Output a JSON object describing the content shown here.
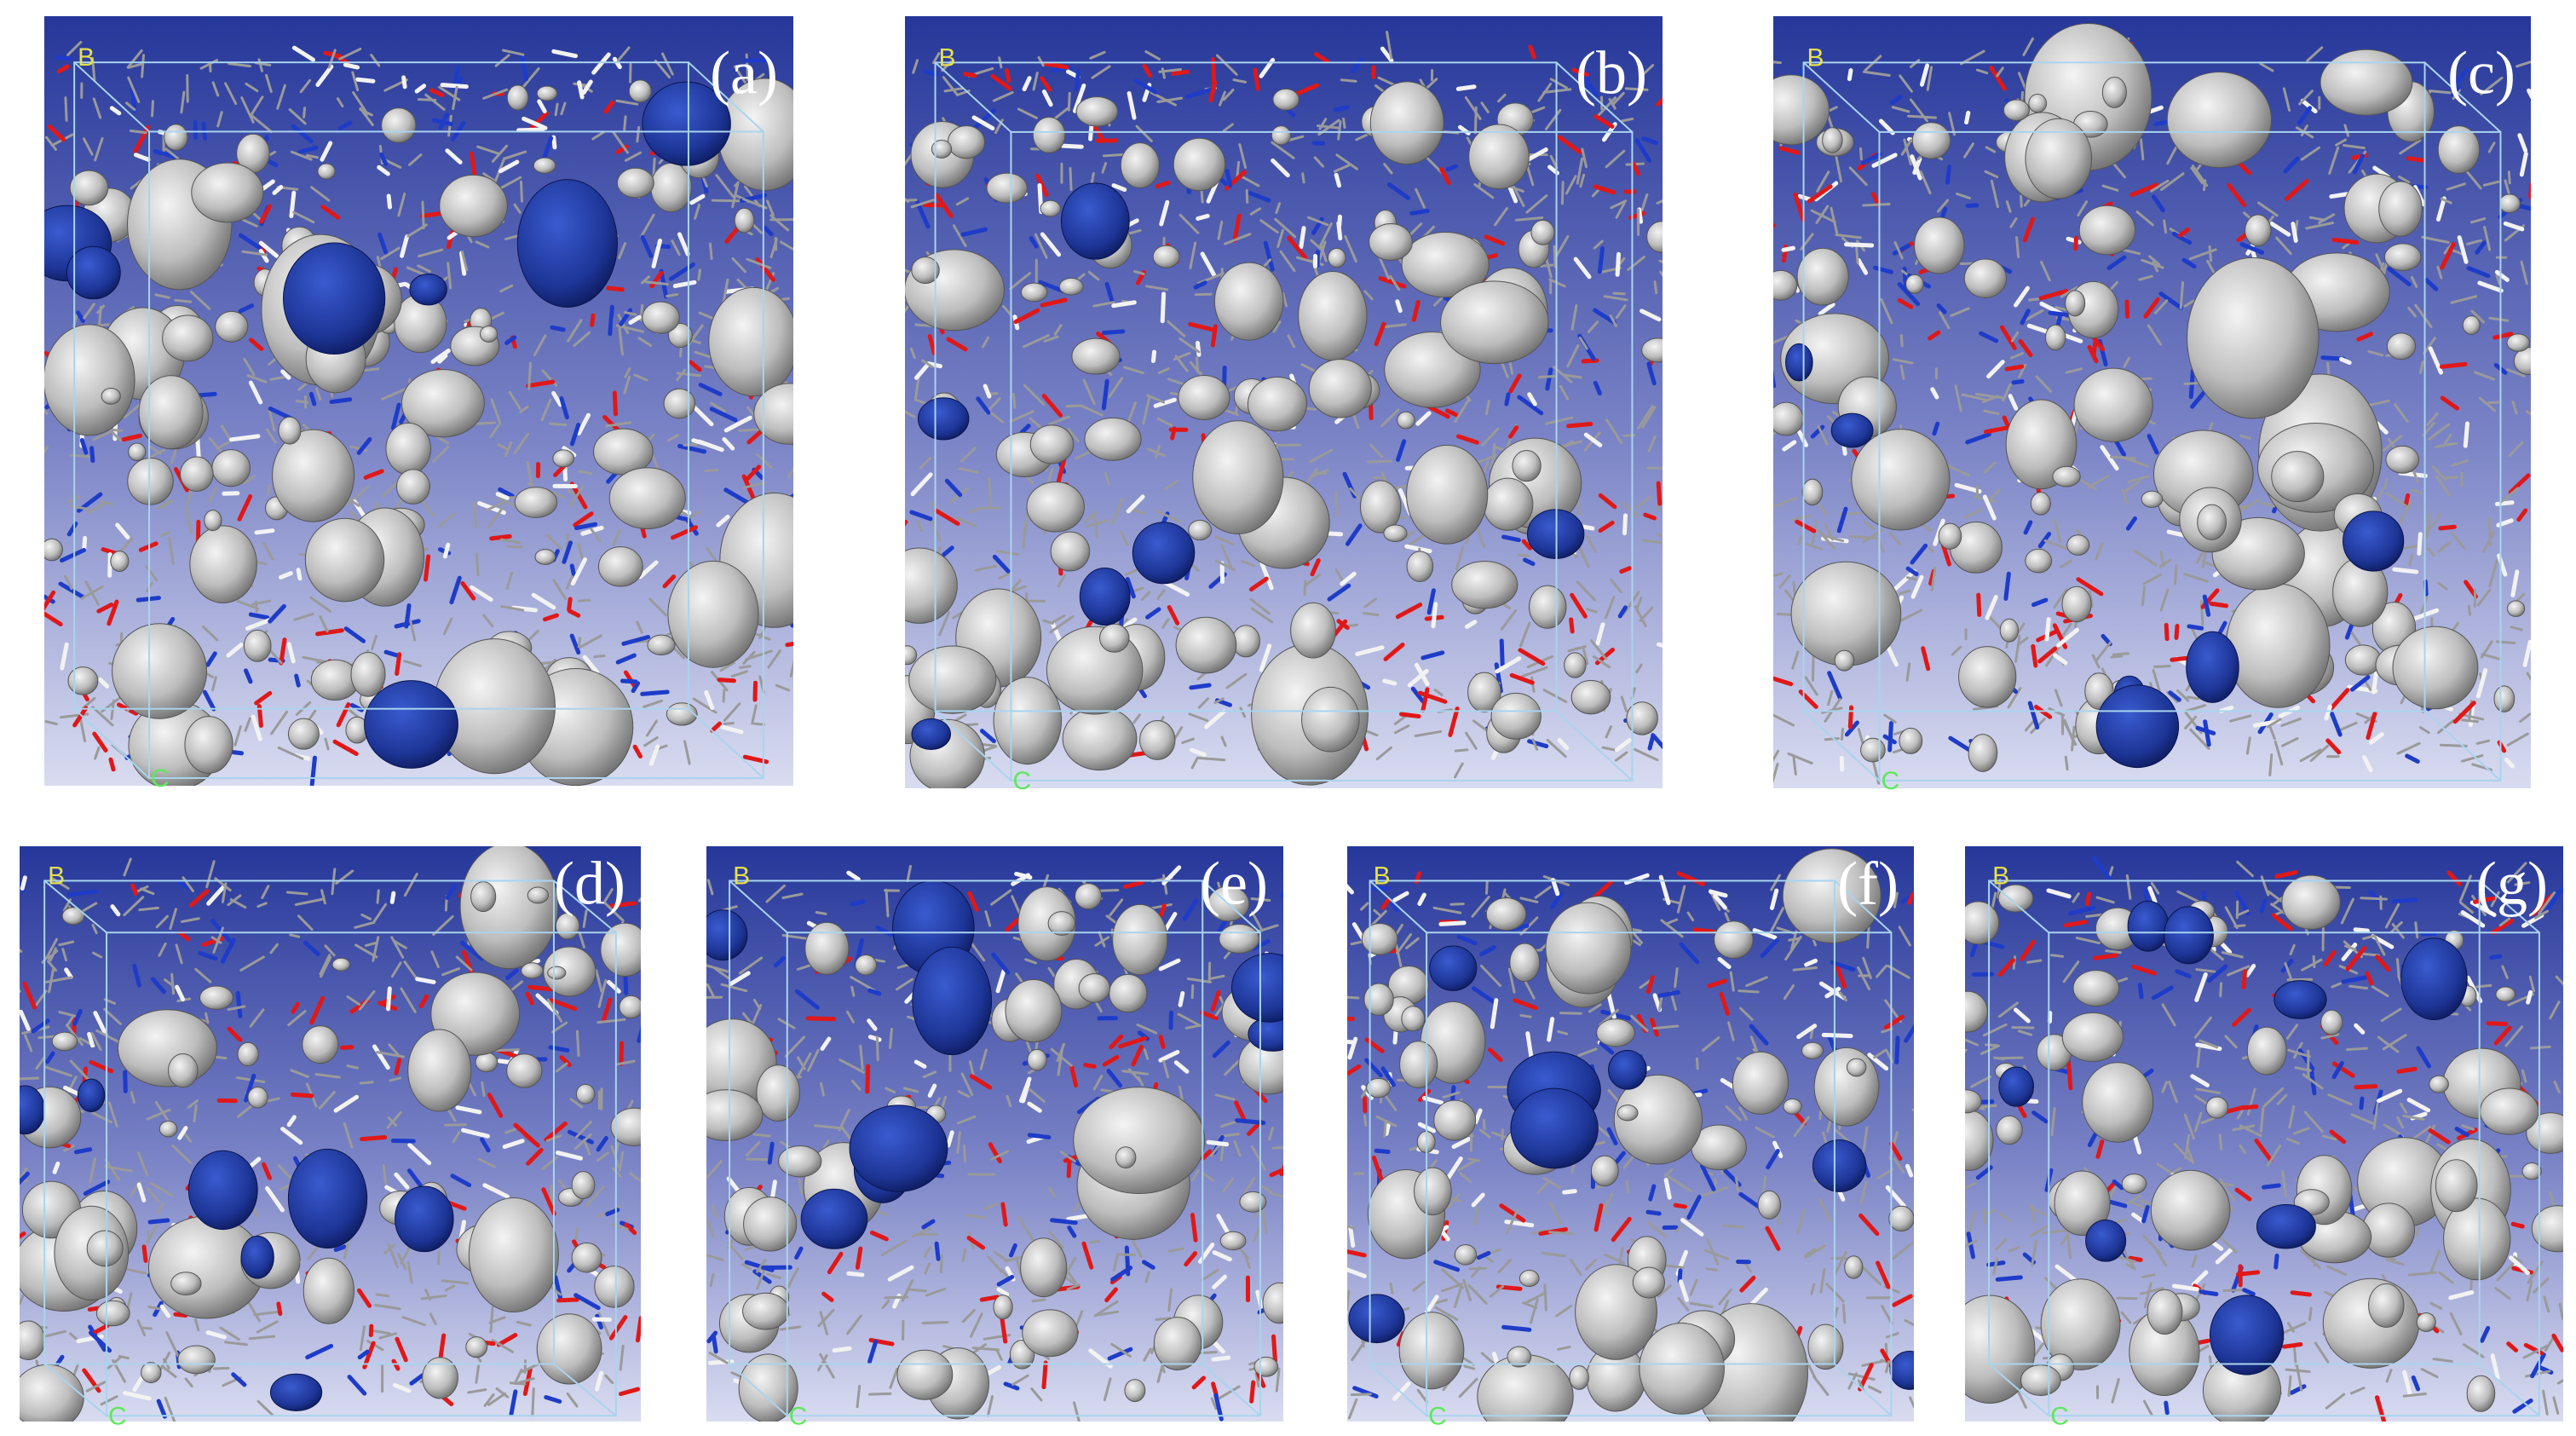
{
  "panels": [
    {
      "label": "(a)",
      "axis_b": "B",
      "axis_c": "C"
    },
    {
      "label": "(b)",
      "axis_b": "B",
      "axis_c": "C"
    },
    {
      "label": "(c)",
      "axis_b": "B",
      "axis_c": "C"
    },
    {
      "label": "(d)",
      "axis_b": "B",
      "axis_c": "C"
    },
    {
      "label": "(e)",
      "axis_b": "B",
      "axis_c": "C"
    },
    {
      "label": "(f)",
      "axis_b": "B",
      "axis_c": "C"
    },
    {
      "label": "(g)",
      "axis_b": "B",
      "axis_c": "C"
    }
  ]
}
